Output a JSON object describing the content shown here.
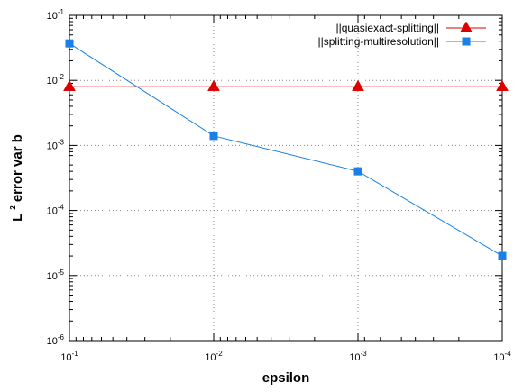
{
  "chart_data": {
    "type": "line",
    "xlabel": "epsilon",
    "ylabel_main": "L",
    "ylabel_sup": "2",
    "ylabel_rest": " error var b",
    "x_scale": "log",
    "y_scale": "log",
    "x_reversed": true,
    "xlim": [
      0.1,
      0.0001
    ],
    "ylim": [
      1e-06,
      0.1
    ],
    "x_ticks": [
      {
        "value": 0.1,
        "base": "10",
        "exp": "-1"
      },
      {
        "value": 0.01,
        "base": "10",
        "exp": "-2"
      },
      {
        "value": 0.001,
        "base": "10",
        "exp": "-3"
      },
      {
        "value": 0.0001,
        "base": "10",
        "exp": "-4"
      }
    ],
    "y_ticks": [
      {
        "value": 0.1,
        "base": "10",
        "exp": "-1"
      },
      {
        "value": 0.01,
        "base": "10",
        "exp": "-2"
      },
      {
        "value": 0.001,
        "base": "10",
        "exp": "-3"
      },
      {
        "value": 0.0001,
        "base": "10",
        "exp": "-4"
      },
      {
        "value": 1e-05,
        "base": "10",
        "exp": "-5"
      },
      {
        "value": 1e-06,
        "base": "10",
        "exp": "-6"
      }
    ],
    "grid": "dotted at major ticks",
    "legend_position": "top-right",
    "series": [
      {
        "name": "||quasiexact-splitting||",
        "color": "#dd0000",
        "marker": "triangle",
        "x": [
          0.1,
          0.01,
          0.001,
          0.0001
        ],
        "y": [
          0.008,
          0.008,
          0.008,
          0.008
        ]
      },
      {
        "name": "||splitting-multiresolution||",
        "color": "#1a7fe6",
        "marker": "square",
        "x": [
          0.1,
          0.01,
          0.001,
          0.0001
        ],
        "y": [
          0.037,
          0.0014,
          0.0004,
          2e-05
        ]
      }
    ]
  }
}
